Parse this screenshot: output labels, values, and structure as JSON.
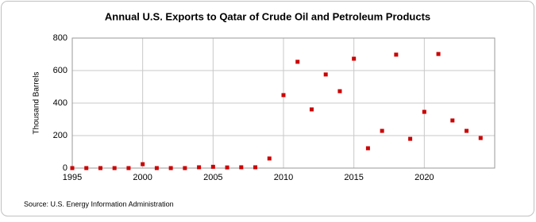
{
  "chart_data": {
    "type": "scatter",
    "title": "Annual U.S. Exports to Qatar of Crude Oil and Petroleum Products",
    "y_label": "Thousand Barrels",
    "source": "Source: U.S. Energy Information Administration",
    "x": [
      1995,
      1996,
      1997,
      1998,
      1999,
      2000,
      2001,
      2002,
      2003,
      2004,
      2005,
      2006,
      2007,
      2008,
      2009,
      2010,
      2011,
      2012,
      2013,
      2014,
      2015,
      2016,
      2017,
      2018,
      2019,
      2020,
      2021,
      2022,
      2023,
      2024
    ],
    "series": [
      {
        "name": "Exports",
        "color": "#cc0000",
        "values": [
          0,
          0,
          0,
          0,
          0,
          24,
          0,
          0,
          0,
          5,
          8,
          4,
          5,
          5,
          59,
          449,
          654,
          361,
          576,
          473,
          673,
          122,
          229,
          698,
          180,
          346,
          702,
          293,
          229,
          185
        ]
      }
    ],
    "xlim": [
      1995,
      2025
    ],
    "xticks": [
      1995,
      2000,
      2005,
      2010,
      2015,
      2020
    ],
    "ylim": [
      0,
      800
    ],
    "yticks": [
      0,
      200,
      400,
      600,
      800
    ],
    "grid": true
  }
}
